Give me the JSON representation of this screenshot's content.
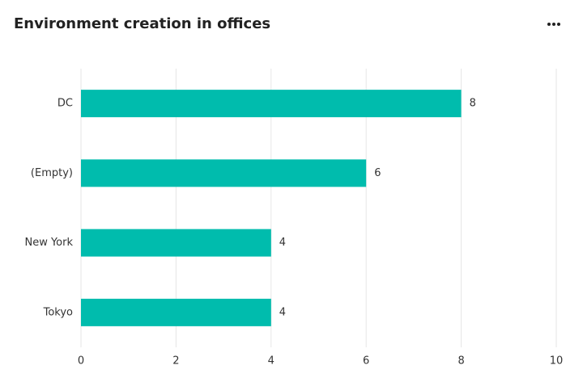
{
  "chart_data": {
    "type": "bar",
    "orientation": "horizontal",
    "title": "Environment creation in offices",
    "categories": [
      "DC",
      "(Empty)",
      "New York",
      "Tokyo"
    ],
    "values": [
      8,
      6,
      4,
      4
    ],
    "color": "#00bcad",
    "xlim": [
      0,
      10
    ],
    "xticks": [
      0,
      2,
      4,
      6,
      8,
      10
    ],
    "grid": true
  }
}
